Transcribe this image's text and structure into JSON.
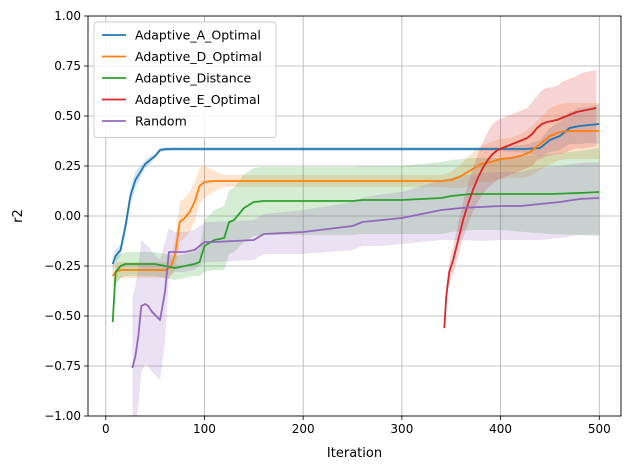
{
  "chart_data": {
    "type": "line",
    "title": "",
    "xlabel": "Iteration",
    "ylabel": "r2",
    "xlim": [
      -18,
      522
    ],
    "ylim": [
      -1.0,
      1.0
    ],
    "xticks": [
      0,
      100,
      200,
      300,
      400,
      500
    ],
    "yticks": [
      -1.0,
      -0.75,
      -0.5,
      -0.25,
      0.0,
      0.25,
      0.5,
      0.75,
      1.0
    ],
    "xtick_labels": [
      "0",
      "100",
      "200",
      "300",
      "400",
      "500"
    ],
    "ytick_labels": [
      "−1.00",
      "−0.75",
      "−0.50",
      "−0.25",
      "0.00",
      "0.25",
      "0.50",
      "0.75",
      "1.00"
    ],
    "grid": true,
    "legend_position": "top-left",
    "series": [
      {
        "name": "Adaptive_A_Optimal",
        "color": "#1f77b4",
        "x": [
          7,
          10,
          15,
          20,
          25,
          30,
          35,
          40,
          45,
          50,
          55,
          60,
          70,
          80,
          100,
          150,
          200,
          250,
          300,
          350,
          400,
          425,
          440,
          450,
          460,
          470,
          480,
          490,
          500
        ],
        "y": [
          -0.24,
          -0.2,
          -0.17,
          -0.05,
          0.1,
          0.18,
          0.22,
          0.26,
          0.28,
          0.3,
          0.33,
          0.334,
          0.335,
          0.335,
          0.335,
          0.335,
          0.335,
          0.335,
          0.335,
          0.335,
          0.335,
          0.335,
          0.34,
          0.38,
          0.4,
          0.44,
          0.45,
          0.455,
          0.46
        ],
        "band": [
          0.03,
          0.03,
          0.03,
          0.04,
          0.04,
          0.04,
          0.03,
          0.02,
          0.02,
          0.01,
          0.01,
          0.01,
          0.01,
          0.01,
          0.01,
          0.01,
          0.01,
          0.01,
          0.01,
          0.01,
          0.01,
          0.02,
          0.04,
          0.06,
          0.07,
          0.08,
          0.09,
          0.09,
          0.1
        ]
      },
      {
        "name": "Adaptive_D_Optimal",
        "color": "#ff7f0e",
        "x": [
          7,
          10,
          15,
          20,
          30,
          40,
          50,
          60,
          65,
          70,
          75,
          80,
          85,
          90,
          95,
          100,
          110,
          120,
          150,
          200,
          250,
          300,
          340,
          350,
          360,
          370,
          380,
          390,
          400,
          410,
          420,
          430,
          440,
          450,
          460,
          470,
          480,
          500
        ],
        "y": [
          -0.3,
          -0.28,
          -0.27,
          -0.27,
          -0.27,
          -0.27,
          -0.27,
          -0.27,
          -0.26,
          -0.2,
          -0.03,
          -0.01,
          0.02,
          0.07,
          0.15,
          0.17,
          0.175,
          0.175,
          0.175,
          0.175,
          0.175,
          0.175,
          0.175,
          0.18,
          0.2,
          0.23,
          0.26,
          0.27,
          0.285,
          0.29,
          0.3,
          0.32,
          0.36,
          0.4,
          0.42,
          0.425,
          0.425,
          0.425
        ],
        "band": [
          0.06,
          0.05,
          0.04,
          0.04,
          0.04,
          0.04,
          0.04,
          0.04,
          0.05,
          0.07,
          0.1,
          0.1,
          0.1,
          0.1,
          0.09,
          0.08,
          0.05,
          0.03,
          0.03,
          0.03,
          0.03,
          0.03,
          0.03,
          0.04,
          0.06,
          0.08,
          0.09,
          0.1,
          0.1,
          0.1,
          0.11,
          0.12,
          0.13,
          0.14,
          0.14,
          0.14,
          0.14,
          0.14
        ]
      },
      {
        "name": "Adaptive_Distance",
        "color": "#2ca02c",
        "x": [
          7,
          10,
          15,
          20,
          30,
          40,
          50,
          55,
          60,
          65,
          70,
          80,
          90,
          95,
          100,
          110,
          120,
          125,
          130,
          140,
          150,
          160,
          200,
          250,
          260,
          300,
          340,
          350,
          370,
          400,
          450,
          480,
          500
        ],
        "y": [
          -0.53,
          -0.28,
          -0.25,
          -0.24,
          -0.24,
          -0.24,
          -0.24,
          -0.245,
          -0.25,
          -0.255,
          -0.26,
          -0.25,
          -0.24,
          -0.23,
          -0.15,
          -0.12,
          -0.11,
          -0.03,
          -0.02,
          0.04,
          0.07,
          0.075,
          0.075,
          0.075,
          0.08,
          0.08,
          0.09,
          0.1,
          0.11,
          0.11,
          0.11,
          0.115,
          0.12
        ],
        "band": [
          0.08,
          0.07,
          0.06,
          0.06,
          0.06,
          0.06,
          0.06,
          0.06,
          0.06,
          0.06,
          0.06,
          0.06,
          0.06,
          0.07,
          0.13,
          0.15,
          0.16,
          0.16,
          0.16,
          0.17,
          0.17,
          0.17,
          0.17,
          0.17,
          0.17,
          0.17,
          0.18,
          0.18,
          0.18,
          0.18,
          0.2,
          0.21,
          0.22
        ]
      },
      {
        "name": "Adaptive_E_Optimal",
        "color": "#d62728",
        "x": [
          343,
          345,
          348,
          352,
          357,
          362,
          367,
          372,
          377,
          382,
          387,
          392,
          397,
          402,
          407,
          412,
          417,
          422,
          427,
          432,
          437,
          442,
          447,
          452,
          457,
          462,
          467,
          472,
          477,
          482,
          487,
          492,
          497
        ],
        "y": [
          -0.56,
          -0.4,
          -0.28,
          -0.22,
          -0.12,
          -0.02,
          0.06,
          0.13,
          0.19,
          0.24,
          0.28,
          0.31,
          0.33,
          0.34,
          0.35,
          0.36,
          0.37,
          0.38,
          0.39,
          0.41,
          0.44,
          0.46,
          0.47,
          0.475,
          0.48,
          0.49,
          0.5,
          0.51,
          0.52,
          0.525,
          0.53,
          0.535,
          0.54
        ],
        "band": [
          0.03,
          0.04,
          0.05,
          0.07,
          0.08,
          0.09,
          0.1,
          0.11,
          0.12,
          0.13,
          0.14,
          0.15,
          0.15,
          0.15,
          0.15,
          0.15,
          0.15,
          0.15,
          0.15,
          0.16,
          0.16,
          0.17,
          0.17,
          0.17,
          0.17,
          0.18,
          0.18,
          0.18,
          0.18,
          0.19,
          0.19,
          0.19,
          0.19
        ]
      },
      {
        "name": "Random",
        "color": "#9467bd",
        "x": [
          27,
          30,
          33,
          36,
          40,
          43,
          47,
          51,
          55,
          60,
          64,
          70,
          80,
          90,
          95,
          100,
          110,
          150,
          160,
          200,
          250,
          260,
          280,
          300,
          320,
          340,
          360,
          380,
          400,
          420,
          440,
          460,
          480,
          500
        ],
        "y": [
          -0.76,
          -0.7,
          -0.6,
          -0.45,
          -0.44,
          -0.45,
          -0.48,
          -0.5,
          -0.52,
          -0.38,
          -0.18,
          -0.18,
          -0.18,
          -0.17,
          -0.15,
          -0.13,
          -0.13,
          -0.12,
          -0.09,
          -0.08,
          -0.05,
          -0.03,
          -0.02,
          -0.01,
          0.01,
          0.03,
          0.04,
          0.045,
          0.05,
          0.05,
          0.06,
          0.07,
          0.085,
          0.09
        ],
        "band": [
          0.35,
          0.35,
          0.35,
          0.33,
          0.3,
          0.3,
          0.3,
          0.3,
          0.3,
          0.25,
          0.12,
          0.1,
          0.1,
          0.1,
          0.1,
          0.1,
          0.1,
          0.1,
          0.1,
          0.11,
          0.12,
          0.12,
          0.13,
          0.13,
          0.14,
          0.15,
          0.16,
          0.17,
          0.17,
          0.17,
          0.18,
          0.18,
          0.18,
          0.18
        ]
      }
    ]
  }
}
